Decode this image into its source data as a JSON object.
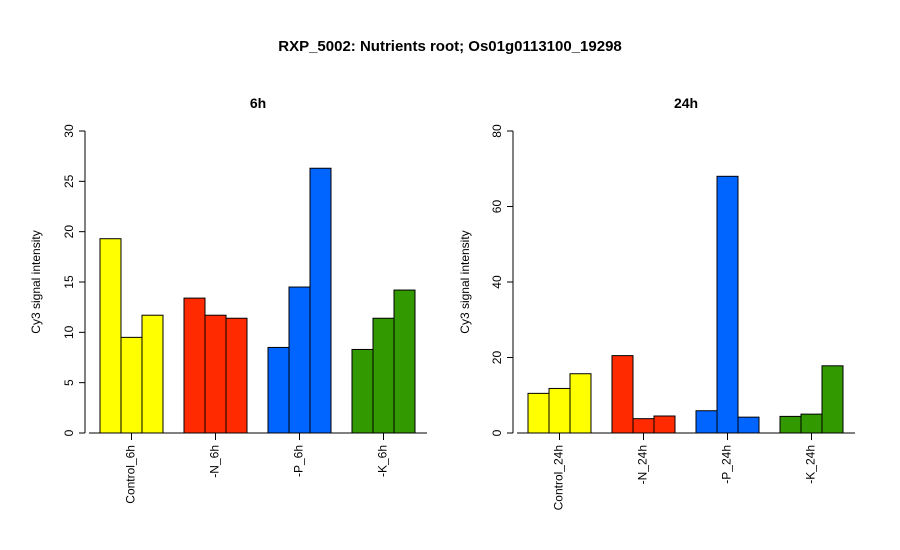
{
  "figure": {
    "title": "RXP_5002: Nutrients root; Os01g0113100_19298"
  },
  "chart_data": [
    {
      "type": "bar",
      "title": "6h",
      "ylabel": "Cy3 signal intensity",
      "xlabel": "",
      "ylim": [
        0,
        30
      ],
      "yticks": [
        0,
        5,
        10,
        15,
        20,
        25,
        30
      ],
      "grid": false,
      "categories": [
        "Control_6h",
        "-N_6h",
        "-P_6h",
        "-K_6h"
      ],
      "category_colors": [
        "#ffff00",
        "#ff2a00",
        "#0064ff",
        "#339900"
      ],
      "values": [
        [
          19.3,
          9.5,
          11.7
        ],
        [
          13.4,
          11.7,
          11.4
        ],
        [
          8.5,
          14.5,
          26.3
        ],
        [
          8.3,
          11.4,
          14.2
        ]
      ]
    },
    {
      "type": "bar",
      "title": "24h",
      "ylabel": "Cy3 signal intensity",
      "xlabel": "",
      "ylim": [
        0,
        80
      ],
      "yticks": [
        0,
        20,
        40,
        60,
        80
      ],
      "grid": false,
      "categories": [
        "Control_24h",
        "-N_24h",
        "-P_24h",
        "-K_24h"
      ],
      "category_colors": [
        "#ffff00",
        "#ff2a00",
        "#0064ff",
        "#339900"
      ],
      "values": [
        [
          10.5,
          11.8,
          15.7
        ],
        [
          20.5,
          3.8,
          4.5
        ],
        [
          5.9,
          68.0,
          4.2
        ],
        [
          4.4,
          5.0,
          17.8
        ]
      ]
    }
  ]
}
